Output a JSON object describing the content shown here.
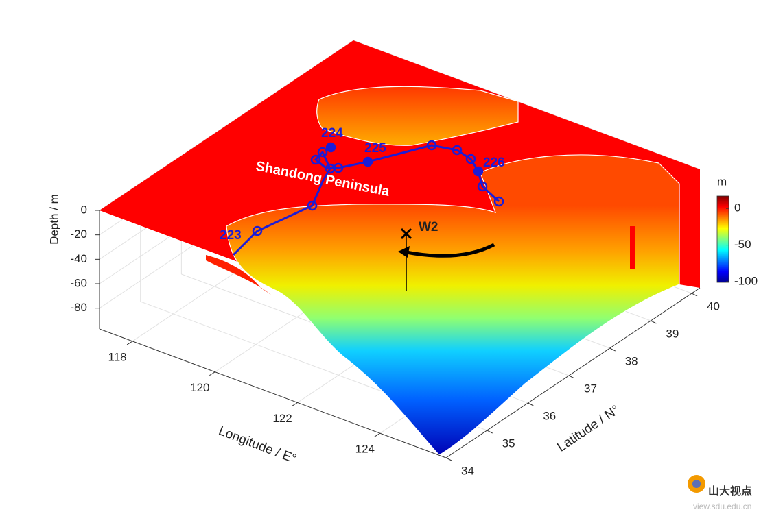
{
  "chart_data": {
    "type": "surface3d",
    "xlabel": "Longitude / E°",
    "ylabel": "Latitude / N°",
    "zlabel": "Depth / m",
    "xlim": [
      117.2,
      125.6
    ],
    "xticks": [
      118,
      120,
      122,
      124
    ],
    "ylim": [
      34,
      40.2
    ],
    "yticks": [
      34,
      35,
      36,
      37,
      38,
      39,
      40
    ],
    "zlim": [
      -97,
      0
    ],
    "zticks": [
      0,
      -20,
      -40,
      -60,
      -80
    ],
    "grid": true,
    "colormap": "jet",
    "colorbar": {
      "label": "m",
      "lim": [
        -101,
        17
      ],
      "ticks": [
        0,
        -50,
        -100
      ]
    },
    "track_color": "#1c1cd6",
    "annotations": {
      "region": "Shandong Peninsula",
      "station": "W2",
      "track_labels": [
        "223",
        "224",
        "225",
        "226"
      ]
    }
  },
  "watermark": {
    "name": "山大视点",
    "url": "view.sdu.edu.cn"
  }
}
